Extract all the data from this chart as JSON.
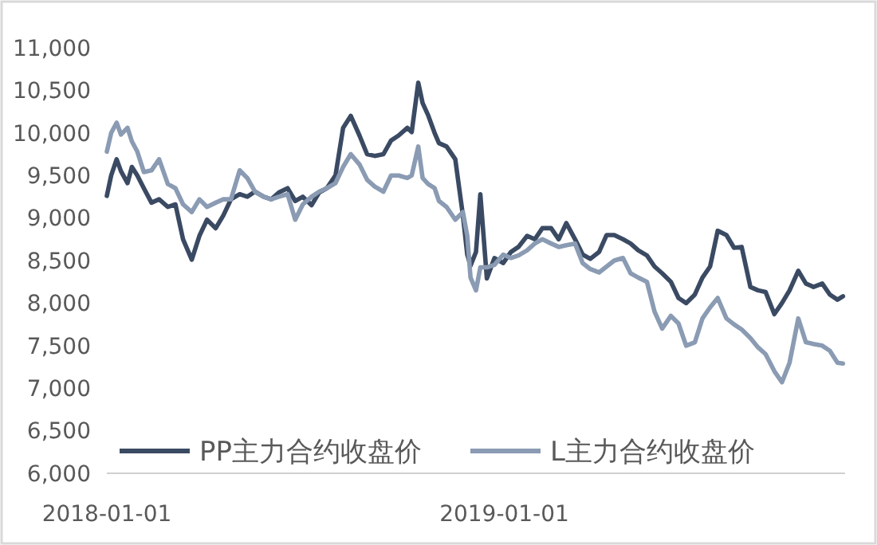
{
  "chart_data": {
    "type": "line",
    "legend": "bottom",
    "grid": false,
    "line_style": "solid",
    "x": [
      "2018-01-01",
      "2018-01-05",
      "2018-01-10",
      "2018-01-14",
      "2018-01-20",
      "2018-01-24",
      "2018-01-29",
      "2018-02-04",
      "2018-02-11",
      "2018-02-18",
      "2018-02-26",
      "2018-03-05",
      "2018-03-12",
      "2018-03-20",
      "2018-03-27",
      "2018-04-03",
      "2018-04-11",
      "2018-04-18",
      "2018-04-25",
      "2018-05-03",
      "2018-05-10",
      "2018-05-17",
      "2018-05-25",
      "2018-06-01",
      "2018-06-08",
      "2018-06-16",
      "2018-06-23",
      "2018-06-30",
      "2018-07-08",
      "2018-07-15",
      "2018-07-22",
      "2018-07-30",
      "2018-08-06",
      "2018-08-13",
      "2018-08-21",
      "2018-08-28",
      "2018-09-04",
      "2018-09-12",
      "2018-09-19",
      "2018-09-26",
      "2018-10-04",
      "2018-10-08",
      "2018-10-14",
      "2018-10-18",
      "2018-10-23",
      "2018-10-29",
      "2018-11-02",
      "2018-11-09",
      "2018-11-17",
      "2018-11-24",
      "2018-11-28",
      "2018-12-01",
      "2018-12-06",
      "2018-12-10",
      "2018-12-16",
      "2018-12-23",
      "2018-12-31",
      "2019-01-07",
      "2019-01-14",
      "2019-01-22",
      "2019-01-29",
      "2019-02-05",
      "2019-02-13",
      "2019-02-20",
      "2019-02-27",
      "2019-03-07",
      "2019-03-14",
      "2019-03-21",
      "2019-03-29",
      "2019-04-05",
      "2019-04-12",
      "2019-04-20",
      "2019-04-27",
      "2019-05-04",
      "2019-05-12",
      "2019-05-19",
      "2019-05-26",
      "2019-06-03",
      "2019-06-10",
      "2019-06-17",
      "2019-06-25",
      "2019-07-02",
      "2019-07-09",
      "2019-07-16",
      "2019-07-24",
      "2019-07-31",
      "2019-08-07",
      "2019-08-15",
      "2019-08-22",
      "2019-08-29",
      "2019-09-06",
      "2019-09-13",
      "2019-09-20",
      "2019-09-28",
      "2019-10-05",
      "2019-10-12",
      "2019-10-20",
      "2019-10-27",
      "2019-11-03",
      "2019-11-08"
    ],
    "series": [
      {
        "name": "PP主力合约收盘价",
        "color": "#3b4a63",
        "values": [
          9260,
          9500,
          9690,
          9550,
          9410,
          9600,
          9500,
          9350,
          9180,
          9220,
          9130,
          9160,
          8750,
          8510,
          8790,
          8980,
          8880,
          9030,
          9220,
          9280,
          9250,
          9310,
          9250,
          9220,
          9300,
          9350,
          9200,
          9250,
          9150,
          9300,
          9350,
          9500,
          10060,
          10200,
          9970,
          9750,
          9730,
          9750,
          9910,
          9970,
          10060,
          10010,
          10590,
          10350,
          10210,
          10000,
          9880,
          9840,
          9690,
          9030,
          8570,
          8440,
          8600,
          9280,
          8290,
          8530,
          8470,
          8600,
          8660,
          8790,
          8750,
          8880,
          8880,
          8750,
          8940,
          8750,
          8570,
          8520,
          8600,
          8800,
          8800,
          8750,
          8700,
          8620,
          8560,
          8430,
          8350,
          8250,
          8060,
          8000,
          8100,
          8300,
          8430,
          8850,
          8800,
          8650,
          8660,
          8190,
          8150,
          8130,
          7870,
          8000,
          8150,
          8380,
          8230,
          8190,
          8230,
          8100,
          8040,
          8080
        ]
      },
      {
        "name": "L主力合约收盘价",
        "color": "#8a9bb3",
        "values": [
          9780,
          10000,
          10120,
          9980,
          10060,
          9900,
          9780,
          9540,
          9560,
          9690,
          9400,
          9350,
          9160,
          9070,
          9220,
          9130,
          9180,
          9220,
          9220,
          9560,
          9470,
          9310,
          9250,
          9220,
          9250,
          9280,
          8980,
          9160,
          9250,
          9310,
          9350,
          9410,
          9600,
          9750,
          9630,
          9450,
          9370,
          9310,
          9500,
          9500,
          9470,
          9500,
          9840,
          9470,
          9400,
          9350,
          9200,
          9130,
          8980,
          9070,
          8790,
          8300,
          8150,
          8420,
          8420,
          8450,
          8570,
          8530,
          8560,
          8620,
          8700,
          8750,
          8700,
          8660,
          8680,
          8700,
          8470,
          8400,
          8360,
          8430,
          8500,
          8530,
          8350,
          8300,
          8250,
          7900,
          7700,
          7850,
          7760,
          7500,
          7540,
          7820,
          7950,
          8060,
          7820,
          7750,
          7690,
          7590,
          7480,
          7400,
          7200,
          7070,
          7300,
          7820,
          7540,
          7520,
          7500,
          7440,
          7300,
          7290
        ]
      }
    ],
    "xlim": [
      "2018-01-01",
      "2019-11-10"
    ],
    "xticks": [
      "2018-01-01",
      "2019-01-01"
    ],
    "ylim": [
      6000,
      11000
    ],
    "yticks": [
      {
        "value": 6000,
        "label": "6,000"
      },
      {
        "value": 6500,
        "label": "6,500"
      },
      {
        "value": 7000,
        "label": "7,000"
      },
      {
        "value": 7500,
        "label": "7,500"
      },
      {
        "value": 8000,
        "label": "8,000"
      },
      {
        "value": 8500,
        "label": "8,500"
      },
      {
        "value": 9000,
        "label": "9,000"
      },
      {
        "value": 9500,
        "label": "9,500"
      },
      {
        "value": 10000,
        "label": "10,000"
      },
      {
        "value": 10500,
        "label": "10,500"
      },
      {
        "value": 11000,
        "label": "11,000"
      }
    ]
  }
}
